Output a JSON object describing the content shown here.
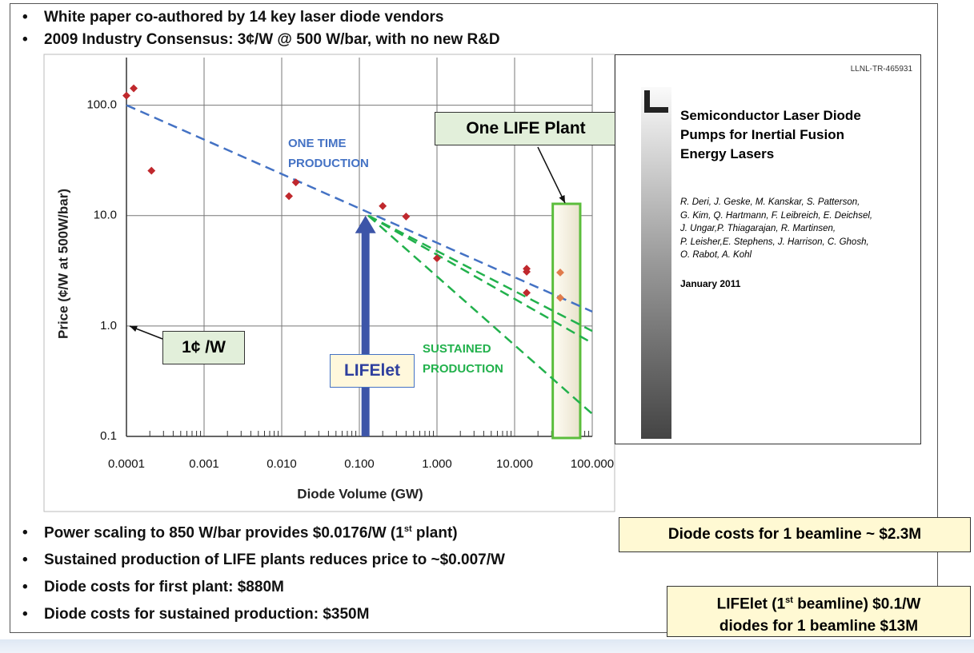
{
  "bullets_top": [
    "White paper co-authored by 14 key laser diode vendors",
    "2009 Industry Consensus:  3¢/W @ 500 W/bar, with no new R&D"
  ],
  "chart_data": {
    "type": "scatter",
    "x_label": "Diode Volume (GW)",
    "y_label": "Price (¢/W at 500W/bar)",
    "xscale": "log",
    "yscale": "log",
    "grid": true,
    "xlim": [
      0.0001,
      100
    ],
    "ylim": [
      0.1,
      270
    ],
    "xticks": [
      0.0001,
      0.001,
      {
        "value": 0.01,
        "label": "0.010"
      },
      {
        "value": 0.1,
        "label": "0.100"
      },
      {
        "value": 1,
        "label": "1.000"
      },
      {
        "value": 10,
        "label": "10.000"
      },
      {
        "value": 100,
        "label": "100.000"
      }
    ],
    "yticks": [
      0.1,
      {
        "value": 1,
        "label": "1.0"
      },
      {
        "value": 10,
        "label": "10.0"
      },
      {
        "value": 100,
        "label": "100.0"
      }
    ],
    "series": [
      {
        "color": "#c0282d",
        "x": [
          0.0001,
          0.000124,
          0.00021,
          0.0124,
          0.0152,
          0.2,
          0.4,
          1.0,
          14.3,
          14.3,
          14.3
        ],
        "values": [
          122,
          142,
          25.5,
          15,
          20,
          12.2,
          9.8,
          4.1,
          3.3,
          3.1,
          2.0
        ]
      },
      {
        "color": "#e07b4c",
        "x": [
          38.7,
          38.7
        ],
        "values": [
          3.05,
          1.8
        ]
      }
    ],
    "lines": [
      {
        "color": "#4472c4",
        "x": [
          0.0001,
          100
        ],
        "values": [
          100,
          1.35
        ]
      },
      {
        "color": "#22b14c",
        "x": [
          0.13,
          100
        ],
        "values": [
          10,
          0.9
        ]
      },
      {
        "color": "#22b14c",
        "x": [
          0.13,
          100
        ],
        "values": [
          10,
          0.7
        ]
      },
      {
        "color": "#22b14c",
        "x": [
          0.13,
          100
        ],
        "values": [
          10,
          0.16
        ]
      }
    ],
    "highlight_x": [
      31,
      70
    ],
    "arrow": {
      "x": 0.12,
      "values": [
        0.1,
        10
      ]
    },
    "annotations": {
      "one_time": [
        "ONE TIME",
        "PRODUCTION"
      ],
      "sustained": [
        "SUSTAINED",
        "PRODUCTION"
      ],
      "plant": "One LIFE Plant",
      "cent": "1¢ /W",
      "lifelet": "LIFElet"
    }
  },
  "report": {
    "id": "LLNL-TR-465931",
    "title": [
      "Semiconductor Laser Diode",
      "Pumps for Inertial Fusion",
      "Energy Lasers"
    ],
    "authors": [
      "R. Deri, J. Geske, M. Kanskar, S. Patterson,",
      "G. Kim, Q. Hartmann, F. Leibreich, E. Deichsel,",
      "J. Ungar,P. Thiagarajan, R. Martinsen,",
      "P. Leisher,E. Stephens, J. Harrison, C. Ghosh,",
      "O. Rabot, A. Kohl"
    ],
    "date": "January 2011"
  },
  "bullets_bottom": [
    [
      "Power scaling to 850 W/bar provides $0.0176/W (1",
      "st",
      " plant)"
    ],
    [
      "Sustained production of LIFE plants reduces price to ~$0.007/W"
    ],
    [
      "Diode costs for first plant: $880M"
    ],
    [
      "Diode costs for sustained production: $350M"
    ]
  ],
  "box_beamline": "Diode costs for 1 beamline ~ $2.3M",
  "box_lifelet": [
    [
      "LIFElet (1",
      "st",
      " beamline) $0.1/W"
    ],
    [
      "diodes for 1 beamline  $13M"
    ]
  ]
}
